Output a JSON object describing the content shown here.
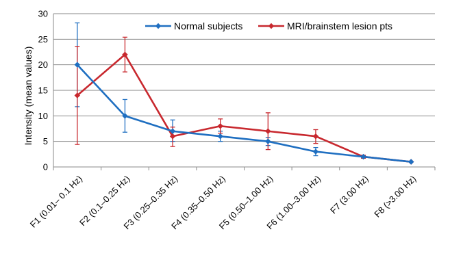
{
  "chart_data": {
    "type": "line",
    "title": "",
    "xlabel": "",
    "ylabel": "Intensity (mean values)",
    "categories": [
      "F1 (0.01– 0.1 Hz)",
      "F2 (0.1–0.25 Hz)",
      "F3 (0.25–0.35 Hz)",
      "F4 (0.35–0.50 Hz)",
      "F5 (0.50–1.00 Hz)",
      "F6 (1.00–3.00 Hz)",
      "F7 (3.00 Hz)",
      "F8 (>3.00 Hz)"
    ],
    "ylim": [
      0,
      30
    ],
    "yticks": [
      0,
      5,
      10,
      15,
      20,
      25,
      30
    ],
    "grid": true,
    "legend_position": "top",
    "series": [
      {
        "name": "Normal subjects",
        "color": "#1f6fc1",
        "values": [
          20,
          10,
          7,
          6,
          5,
          3,
          2,
          1
        ],
        "err_low": [
          11.8,
          6.8,
          5.0,
          5.0,
          4.2,
          2.2,
          1.8,
          1.0
        ],
        "err_high": [
          28.2,
          13.2,
          9.2,
          7.0,
          5.8,
          3.8,
          2.2,
          1.0
        ]
      },
      {
        "name": "MRI/brainstem lesion pts",
        "color": "#c8282e",
        "values": [
          14,
          22,
          6,
          8,
          7,
          6,
          2,
          1
        ],
        "err_low": [
          4.4,
          18.6,
          4.0,
          6.6,
          3.4,
          4.6,
          1.7,
          1.0
        ],
        "err_high": [
          23.6,
          25.4,
          7.8,
          9.4,
          10.6,
          7.3,
          2.3,
          1.0
        ]
      }
    ]
  }
}
